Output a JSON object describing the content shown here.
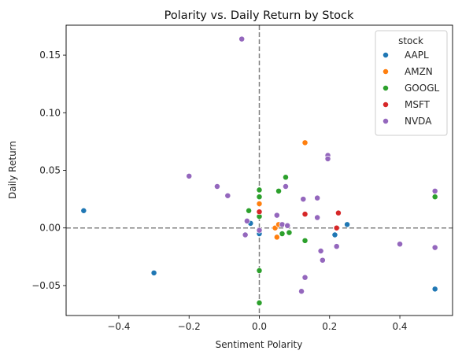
{
  "chart_data": {
    "type": "scatter",
    "title": "Polarity vs. Daily Return by Stock",
    "xlabel": "Sentiment Polarity",
    "ylabel": "Daily Return",
    "xlim": [
      -0.55,
      0.55
    ],
    "ylim": [
      -0.076,
      0.176
    ],
    "xticks": [
      -0.4,
      -0.2,
      0.0,
      0.2,
      0.4
    ],
    "xtick_labels": [
      "−0.4",
      "−0.2",
      "0.0",
      "0.2",
      "0.4"
    ],
    "yticks": [
      -0.05,
      0.0,
      0.05,
      0.1,
      0.15
    ],
    "ytick_labels": [
      "−0.05",
      "0.00",
      "0.05",
      "0.10",
      "0.15"
    ],
    "reference_lines": {
      "x": 0,
      "y": 0,
      "style": "dashed",
      "color": "#808080"
    },
    "grid": false,
    "legend": {
      "title": "stock",
      "placement": "top-right"
    },
    "series": [
      {
        "name": "AAPL",
        "color": "#1f77b4",
        "points": [
          [
            -0.5,
            0.015
          ],
          [
            -0.3,
            -0.039
          ],
          [
            -0.025,
            0.004
          ],
          [
            0.0,
            -0.005
          ],
          [
            0.215,
            -0.006
          ],
          [
            0.25,
            0.003
          ],
          [
            0.5,
            -0.053
          ]
        ]
      },
      {
        "name": "AMZN",
        "color": "#ff7f0e",
        "points": [
          [
            0.0,
            0.021
          ],
          [
            0.045,
            0.0
          ],
          [
            0.05,
            -0.008
          ],
          [
            0.055,
            0.003
          ],
          [
            0.13,
            0.074
          ]
        ]
      },
      {
        "name": "GOOGL",
        "color": "#2ca02c",
        "points": [
          [
            -0.03,
            0.015
          ],
          [
            0.0,
            0.033
          ],
          [
            0.0,
            0.027
          ],
          [
            0.0,
            0.01
          ],
          [
            0.0,
            -0.037
          ],
          [
            0.0,
            -0.065
          ],
          [
            0.055,
            0.032
          ],
          [
            0.065,
            -0.005
          ],
          [
            0.075,
            0.044
          ],
          [
            0.085,
            -0.004
          ],
          [
            0.13,
            -0.011
          ],
          [
            0.5,
            0.027
          ]
        ]
      },
      {
        "name": "MSFT",
        "color": "#d62728",
        "points": [
          [
            0.0,
            0.014
          ],
          [
            0.13,
            0.012
          ],
          [
            0.22,
            0.0
          ],
          [
            0.225,
            0.013
          ]
        ]
      },
      {
        "name": "NVDA",
        "color": "#9467bd",
        "points": [
          [
            -0.05,
            0.164
          ],
          [
            -0.2,
            0.045
          ],
          [
            -0.12,
            0.036
          ],
          [
            -0.09,
            0.028
          ],
          [
            -0.035,
            0.006
          ],
          [
            -0.04,
            -0.006
          ],
          [
            0.0,
            -0.002
          ],
          [
            0.05,
            0.011
          ],
          [
            0.065,
            0.003
          ],
          [
            0.075,
            0.036
          ],
          [
            0.08,
            0.002
          ],
          [
            0.125,
            0.025
          ],
          [
            0.13,
            -0.043
          ],
          [
            0.12,
            -0.055
          ],
          [
            0.165,
            0.026
          ],
          [
            0.165,
            0.009
          ],
          [
            0.175,
            -0.02
          ],
          [
            0.18,
            -0.028
          ],
          [
            0.195,
            0.063
          ],
          [
            0.195,
            0.06
          ],
          [
            0.22,
            -0.016
          ],
          [
            0.4,
            -0.014
          ],
          [
            0.5,
            0.032
          ],
          [
            0.5,
            -0.017
          ]
        ]
      }
    ]
  }
}
